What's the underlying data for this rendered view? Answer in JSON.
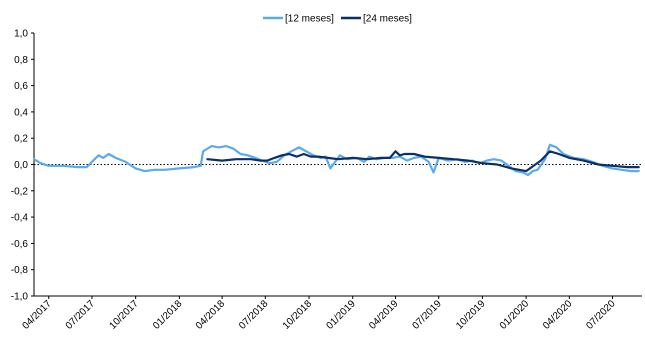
{
  "chart_data": {
    "type": "line",
    "title": "",
    "xlabel": "",
    "ylabel": "",
    "ylim": [
      -1.0,
      1.0
    ],
    "y_ticks": [
      1.0,
      0.8,
      0.6,
      0.4,
      0.2,
      0.0,
      -0.2,
      -0.4,
      -0.6,
      -0.8,
      -1.0
    ],
    "y_tick_labels": [
      "1,0",
      "0,8",
      "0,6",
      "0,4",
      "0,2",
      "0,0",
      "-0,2",
      "-0,4",
      "-0,6",
      "-0,8",
      "-1,0"
    ],
    "x_range": [
      "2017-03-01",
      "2020-09-01"
    ],
    "x_ticks": [
      "2017-04-01",
      "2017-07-01",
      "2017-10-01",
      "2018-01-01",
      "2018-04-01",
      "2018-07-01",
      "2018-10-01",
      "2019-01-01",
      "2019-04-01",
      "2019-07-01",
      "2019-10-01",
      "2020-01-01",
      "2020-04-01",
      "2020-07-01"
    ],
    "x_tick_labels": [
      "04/2017",
      "07/2017",
      "10/2017",
      "01/2018",
      "04/2018",
      "07/2018",
      "10/2018",
      "01/2019",
      "04/2019",
      "07/2019",
      "10/2019",
      "01/2020",
      "04/2020",
      "07/2020"
    ],
    "grid": false,
    "zero_line": "dotted",
    "legend_position": "top-center",
    "series": [
      {
        "name": "[12 meses]",
        "color": "#5aaaf0",
        "points": [
          [
            "2017-03-01",
            0.04
          ],
          [
            "2017-03-15",
            0.01
          ],
          [
            "2017-04-01",
            -0.01
          ],
          [
            "2017-05-01",
            -0.01
          ],
          [
            "2017-06-01",
            -0.02
          ],
          [
            "2017-06-20",
            -0.02
          ],
          [
            "2017-07-01",
            0.02
          ],
          [
            "2017-07-15",
            0.07
          ],
          [
            "2017-07-25",
            0.05
          ],
          [
            "2017-08-05",
            0.08
          ],
          [
            "2017-08-20",
            0.05
          ],
          [
            "2017-09-10",
            0.02
          ],
          [
            "2017-10-01",
            -0.03
          ],
          [
            "2017-10-20",
            -0.05
          ],
          [
            "2017-11-10",
            -0.04
          ],
          [
            "2017-12-01",
            -0.04
          ],
          [
            "2018-01-01",
            -0.03
          ],
          [
            "2018-02-01",
            -0.02
          ],
          [
            "2018-02-15",
            -0.01
          ],
          [
            "2018-02-20",
            0.1
          ],
          [
            "2018-03-10",
            0.14
          ],
          [
            "2018-03-25",
            0.13
          ],
          [
            "2018-04-10",
            0.14
          ],
          [
            "2018-04-25",
            0.12
          ],
          [
            "2018-05-10",
            0.08
          ],
          [
            "2018-05-25",
            0.07
          ],
          [
            "2018-06-10",
            0.05
          ],
          [
            "2018-06-25",
            0.03
          ],
          [
            "2018-07-10",
            0.01
          ],
          [
            "2018-07-25",
            0.02
          ],
          [
            "2018-08-10",
            0.07
          ],
          [
            "2018-08-25",
            0.1
          ],
          [
            "2018-09-10",
            0.13
          ],
          [
            "2018-09-25",
            0.1
          ],
          [
            "2018-10-10",
            0.07
          ],
          [
            "2018-10-25",
            0.05
          ],
          [
            "2018-11-05",
            0.06
          ],
          [
            "2018-11-15",
            -0.03
          ],
          [
            "2018-11-25",
            0.02
          ],
          [
            "2018-12-05",
            0.07
          ],
          [
            "2018-12-20",
            0.04
          ],
          [
            "2019-01-10",
            0.05
          ],
          [
            "2019-01-25",
            0.02
          ],
          [
            "2019-02-05",
            0.06
          ],
          [
            "2019-02-20",
            0.04
          ],
          [
            "2019-03-10",
            0.05
          ],
          [
            "2019-03-25",
            0.05
          ],
          [
            "2019-04-10",
            0.06
          ],
          [
            "2019-04-25",
            0.03
          ],
          [
            "2019-05-10",
            0.05
          ],
          [
            "2019-05-25",
            0.06
          ],
          [
            "2019-06-10",
            0.02
          ],
          [
            "2019-06-20",
            -0.06
          ],
          [
            "2019-07-01",
            0.05
          ],
          [
            "2019-07-20",
            0.03
          ],
          [
            "2019-08-10",
            0.04
          ],
          [
            "2019-08-25",
            0.02
          ],
          [
            "2019-09-10",
            0.03
          ],
          [
            "2019-09-25",
            0.01
          ],
          [
            "2019-10-10",
            0.03
          ],
          [
            "2019-10-25",
            0.04
          ],
          [
            "2019-11-10",
            0.03
          ],
          [
            "2019-11-25",
            -0.01
          ],
          [
            "2019-12-10",
            -0.05
          ],
          [
            "2019-12-25",
            -0.06
          ],
          [
            "2020-01-05",
            -0.08
          ],
          [
            "2020-01-15",
            -0.05
          ],
          [
            "2020-01-25",
            -0.04
          ],
          [
            "2020-02-10",
            0.04
          ],
          [
            "2020-02-20",
            0.15
          ],
          [
            "2020-03-05",
            0.13
          ],
          [
            "2020-03-20",
            0.08
          ],
          [
            "2020-04-10",
            0.05
          ],
          [
            "2020-05-01",
            0.04
          ],
          [
            "2020-05-20",
            0.02
          ],
          [
            "2020-06-10",
            -0.01
          ],
          [
            "2020-07-01",
            -0.03
          ],
          [
            "2020-07-20",
            -0.04
          ],
          [
            "2020-08-10",
            -0.05
          ],
          [
            "2020-08-25",
            -0.05
          ]
        ]
      },
      {
        "name": "[24 meses]",
        "color": "#0c2f66",
        "points": [
          [
            "2018-03-01",
            0.04
          ],
          [
            "2018-04-01",
            0.03
          ],
          [
            "2018-05-01",
            0.04
          ],
          [
            "2018-06-01",
            0.04
          ],
          [
            "2018-06-20",
            0.03
          ],
          [
            "2018-07-05",
            0.03
          ],
          [
            "2018-07-20",
            0.05
          ],
          [
            "2018-08-05",
            0.07
          ],
          [
            "2018-08-20",
            0.08
          ],
          [
            "2018-09-05",
            0.06
          ],
          [
            "2018-09-20",
            0.08
          ],
          [
            "2018-10-05",
            0.06
          ],
          [
            "2018-10-20",
            0.06
          ],
          [
            "2018-11-10",
            0.05
          ],
          [
            "2018-12-01",
            0.04
          ],
          [
            "2019-01-01",
            0.05
          ],
          [
            "2019-02-01",
            0.04
          ],
          [
            "2019-03-01",
            0.05
          ],
          [
            "2019-03-20",
            0.05
          ],
          [
            "2019-04-01",
            0.1
          ],
          [
            "2019-04-10",
            0.07
          ],
          [
            "2019-04-20",
            0.08
          ],
          [
            "2019-05-10",
            0.08
          ],
          [
            "2019-06-01",
            0.06
          ],
          [
            "2019-07-01",
            0.05
          ],
          [
            "2019-08-01",
            0.04
          ],
          [
            "2019-09-01",
            0.03
          ],
          [
            "2019-10-01",
            0.01
          ],
          [
            "2019-11-01",
            0.0
          ],
          [
            "2019-12-01",
            -0.03
          ],
          [
            "2020-01-01",
            -0.05
          ],
          [
            "2020-02-01",
            0.03
          ],
          [
            "2020-02-20",
            0.1
          ],
          [
            "2020-03-10",
            0.08
          ],
          [
            "2020-04-01",
            0.05
          ],
          [
            "2020-05-01",
            0.03
          ],
          [
            "2020-06-01",
            0.0
          ],
          [
            "2020-07-01",
            -0.01
          ],
          [
            "2020-08-01",
            -0.02
          ],
          [
            "2020-08-25",
            -0.02
          ]
        ]
      }
    ]
  }
}
